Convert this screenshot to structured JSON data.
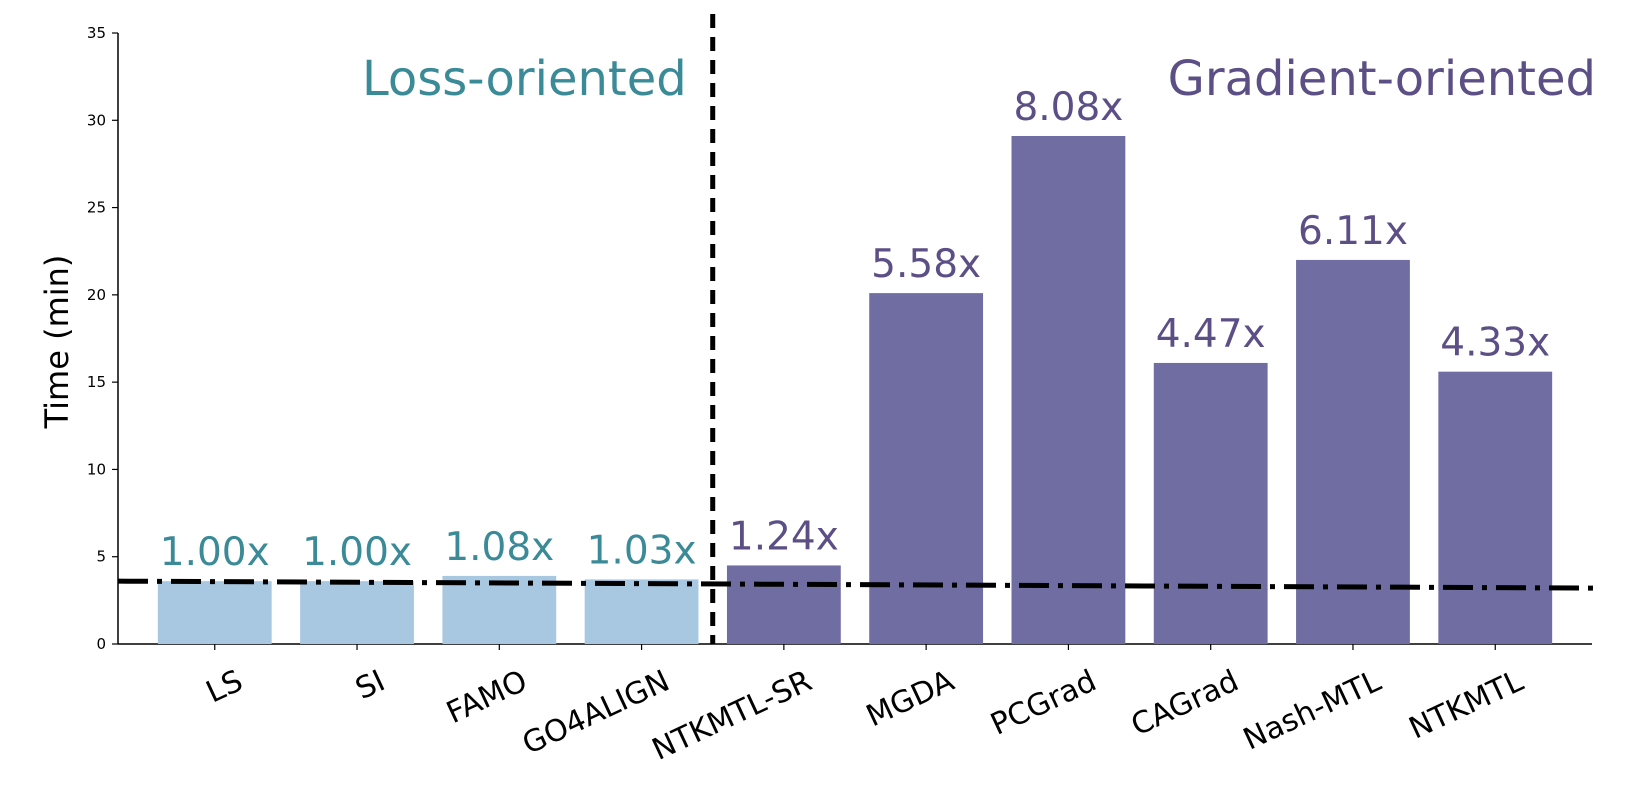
{
  "chart_data": {
    "type": "bar",
    "ylabel": "Time (min)",
    "ylim": [
      0,
      35
    ],
    "yticks": [
      0,
      5,
      10,
      15,
      20,
      25,
      30,
      35
    ],
    "categories": [
      "LS",
      "SI",
      "FAMO",
      "GO4ALIGN",
      "NTKMTL-SR",
      "MGDA",
      "PCGrad",
      "CAGrad",
      "Nash-MTL",
      "NTKMTL"
    ],
    "values": [
      3.6,
      3.6,
      3.9,
      3.7,
      4.5,
      20.1,
      29.1,
      16.1,
      22.0,
      15.6
    ],
    "bar_labels": [
      "1.00x",
      "1.00x",
      "1.08x",
      "1.03x",
      "1.24x",
      "5.58x",
      "8.08x",
      "4.47x",
      "6.11x",
      "4.33x"
    ],
    "groups": [
      {
        "label": "Loss-oriented",
        "color": "#3a8a98",
        "bar_color": "#a8c8e2",
        "start": 0,
        "end": 3
      },
      {
        "label": "Gradient-oriented",
        "color": "#5c4f86",
        "bar_color": "#6f6da1",
        "start": 4,
        "end": 9
      }
    ],
    "reference_line": {
      "style": "dash-dot",
      "y_start": 3.6,
      "y_end": 3.2
    },
    "separator": {
      "style": "dashed",
      "between": [
        3,
        4
      ]
    },
    "grid": false
  }
}
